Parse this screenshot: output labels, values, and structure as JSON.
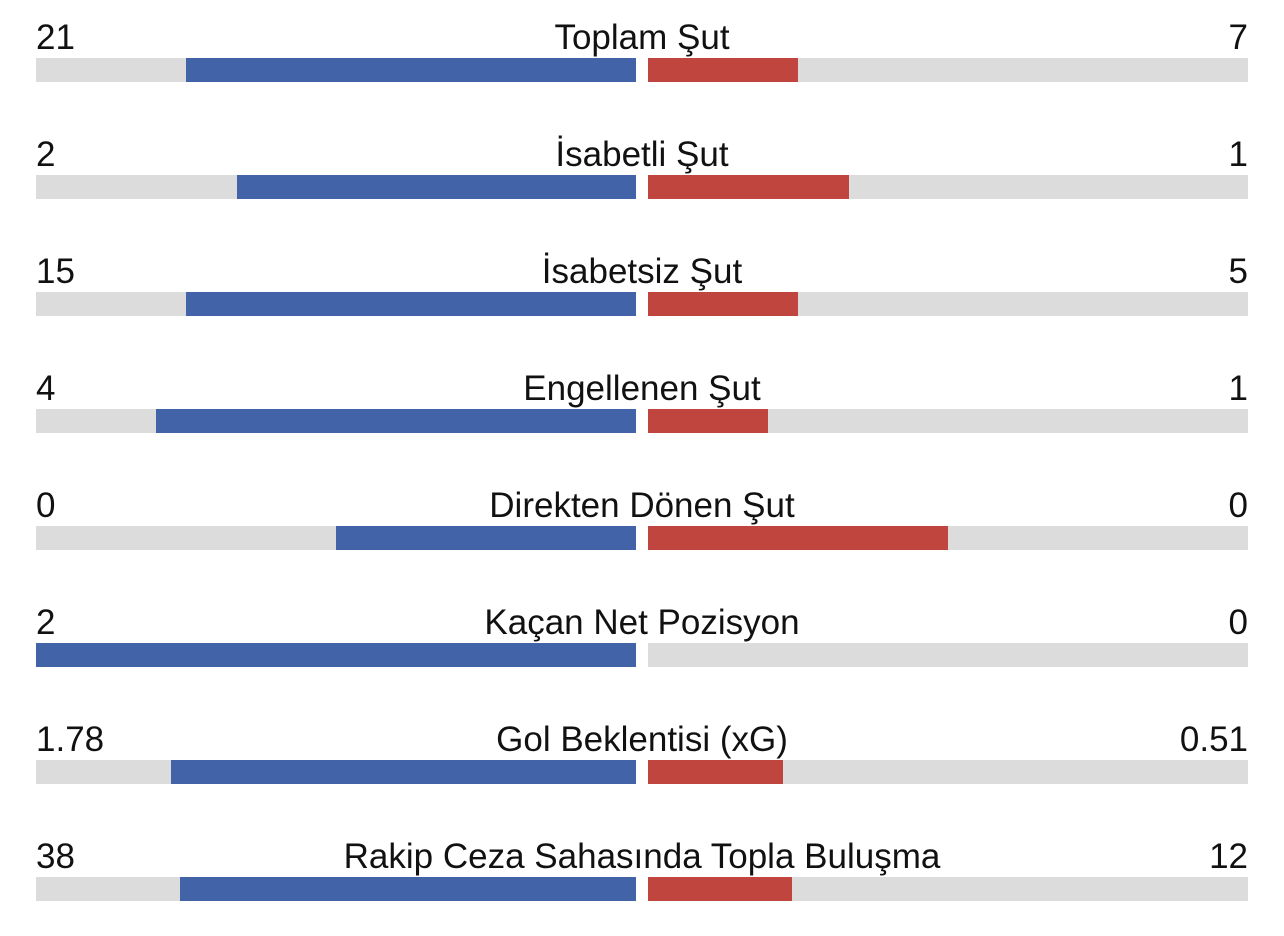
{
  "colors": {
    "home": "#4263a8",
    "away": "#c0453f",
    "track": "#dcdcdc"
  },
  "stats": [
    {
      "label": "Toplam Şut",
      "home": "21",
      "away": "7",
      "home_share": 0.75,
      "away_share": 0.25
    },
    {
      "label": "İsabetli Şut",
      "home": "2",
      "away": "1",
      "home_share": 0.665,
      "away_share": 0.335
    },
    {
      "label": "İsabetsiz Şut",
      "home": "15",
      "away": "5",
      "home_share": 0.75,
      "away_share": 0.25
    },
    {
      "label": "Engellenen Şut",
      "home": "4",
      "away": "1",
      "home_share": 0.8,
      "away_share": 0.2
    },
    {
      "label": "Direkten Dönen Şut",
      "home": "0",
      "away": "0",
      "home_share": 0.5,
      "away_share": 0.5
    },
    {
      "label": "Kaçan Net Pozisyon",
      "home": "2",
      "away": "0",
      "home_share": 1.0,
      "away_share": 0.0
    },
    {
      "label": "Gol Beklentisi (xG)",
      "home": "1.78",
      "away": "0.51",
      "home_share": 0.775,
      "away_share": 0.225
    },
    {
      "label": "Rakip Ceza Sahasında Topla Buluşma",
      "home": "38",
      "away": "12",
      "home_share": 0.76,
      "away_share": 0.24
    }
  ]
}
